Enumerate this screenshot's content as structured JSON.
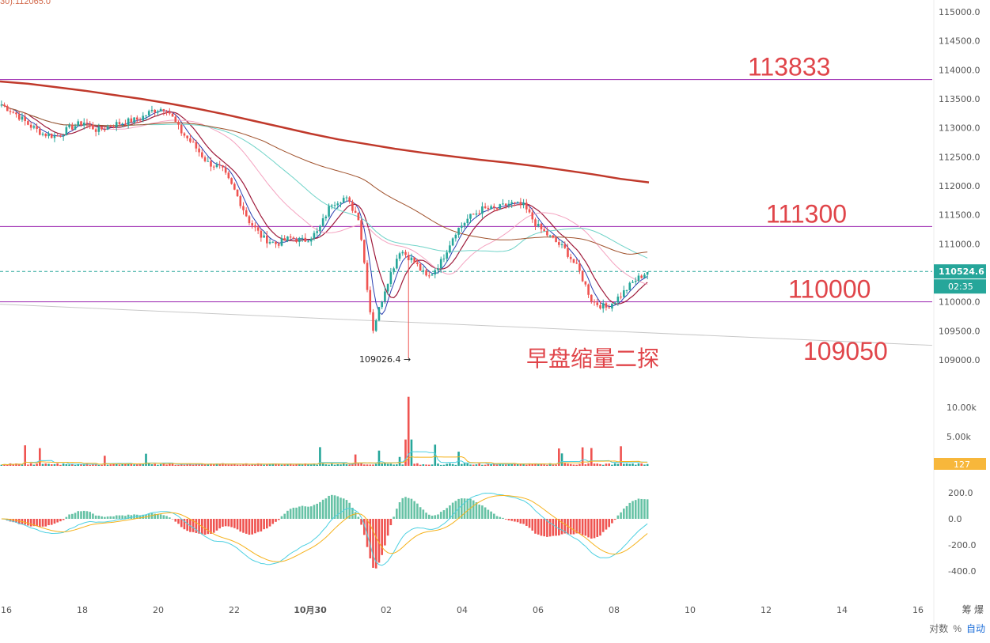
{
  "header": {
    "corner_label": "30):112065.0"
  },
  "price_axis": {
    "ticks": [
      "115000.0",
      "114500.0",
      "114000.0",
      "113500.0",
      "113000.0",
      "112500.0",
      "112000.0",
      "111500.0",
      "111000.0",
      "110500.0",
      "110000.0",
      "109500.0",
      "109000.0"
    ],
    "tick_values": [
      115000,
      114500,
      114000,
      113500,
      113000,
      112500,
      112000,
      111500,
      111000,
      110500,
      110000,
      109500,
      109000
    ],
    "last_price": "110524.6",
    "countdown": "02:35",
    "range": [
      108950,
      115100
    ]
  },
  "volume_axis": {
    "ticks": [
      "10.00k",
      "5.00k"
    ],
    "tick_values": [
      10000,
      5000
    ],
    "last_volume": "127",
    "range": [
      0,
      12000
    ]
  },
  "macd_axis": {
    "ticks": [
      "200.0",
      "0.0",
      "-200.0",
      "-400.0"
    ],
    "tick_values": [
      200,
      0,
      -200,
      -400
    ],
    "range": [
      -450,
      250
    ]
  },
  "time_axis": {
    "ticks": [
      "16",
      "18",
      "20",
      "22",
      "10月30",
      "02",
      "04",
      "06",
      "08",
      "10",
      "12",
      "14",
      "16"
    ]
  },
  "levels": [
    {
      "label": "113833",
      "value": 113833,
      "color": "#9c27b0"
    },
    {
      "label": "111300",
      "value": 111300,
      "color": "#9c27b0"
    },
    {
      "label": "110000",
      "value": 110000,
      "color": "#9c27b0"
    }
  ],
  "trend_line": {
    "label": "109050",
    "start_value": 109960,
    "end_value": 109250,
    "color": "#c8c8c8"
  },
  "low_marker": {
    "label": "109026.4 →",
    "value": 109026.4
  },
  "annotation": "早盘缩量二探",
  "bottom_controls": {
    "log": "对数",
    "percent": "%",
    "auto": "自动"
  },
  "side_label": "筹 爆",
  "colors": {
    "up": "#26a69a",
    "down": "#ef5350",
    "ma200": "#c0392b",
    "level": "#9c27b0",
    "macd_fast": "#4dd0e1",
    "macd_slow": "#f5b21b"
  },
  "chart_data": {
    "type": "candlestick",
    "title": "",
    "x": [
      "16",
      "18",
      "20",
      "22",
      "10月30",
      "02",
      "04",
      "06",
      "08"
    ],
    "close_path": [
      113400,
      113250,
      113050,
      112900,
      112850,
      113000,
      113100,
      112950,
      113050,
      113100,
      113150,
      113300,
      113350,
      112950,
      112700,
      112400,
      112300,
      111900,
      111400,
      111100,
      111000,
      111100,
      111050,
      111200,
      111700,
      111800,
      111450,
      109500,
      110300,
      110900,
      110700,
      110400,
      110700,
      111200,
      111450,
      111600,
      111600,
      111700,
      111650,
      111300,
      111100,
      110900,
      110550,
      110000,
      109900,
      110100,
      110350,
      110524.6
    ],
    "ma200_path": [
      113800,
      113760,
      113700,
      113640,
      113570,
      113500,
      113420,
      113330,
      113230,
      113120,
      113010,
      112900,
      112800,
      112720,
      112640,
      112570,
      112510,
      112450,
      112400,
      112340,
      112270,
      112200,
      112120,
      112060
    ],
    "last_price": 110524.6,
    "low": 109026.4,
    "volume_peak": 11800,
    "macd_range": [
      -400,
      200
    ]
  }
}
